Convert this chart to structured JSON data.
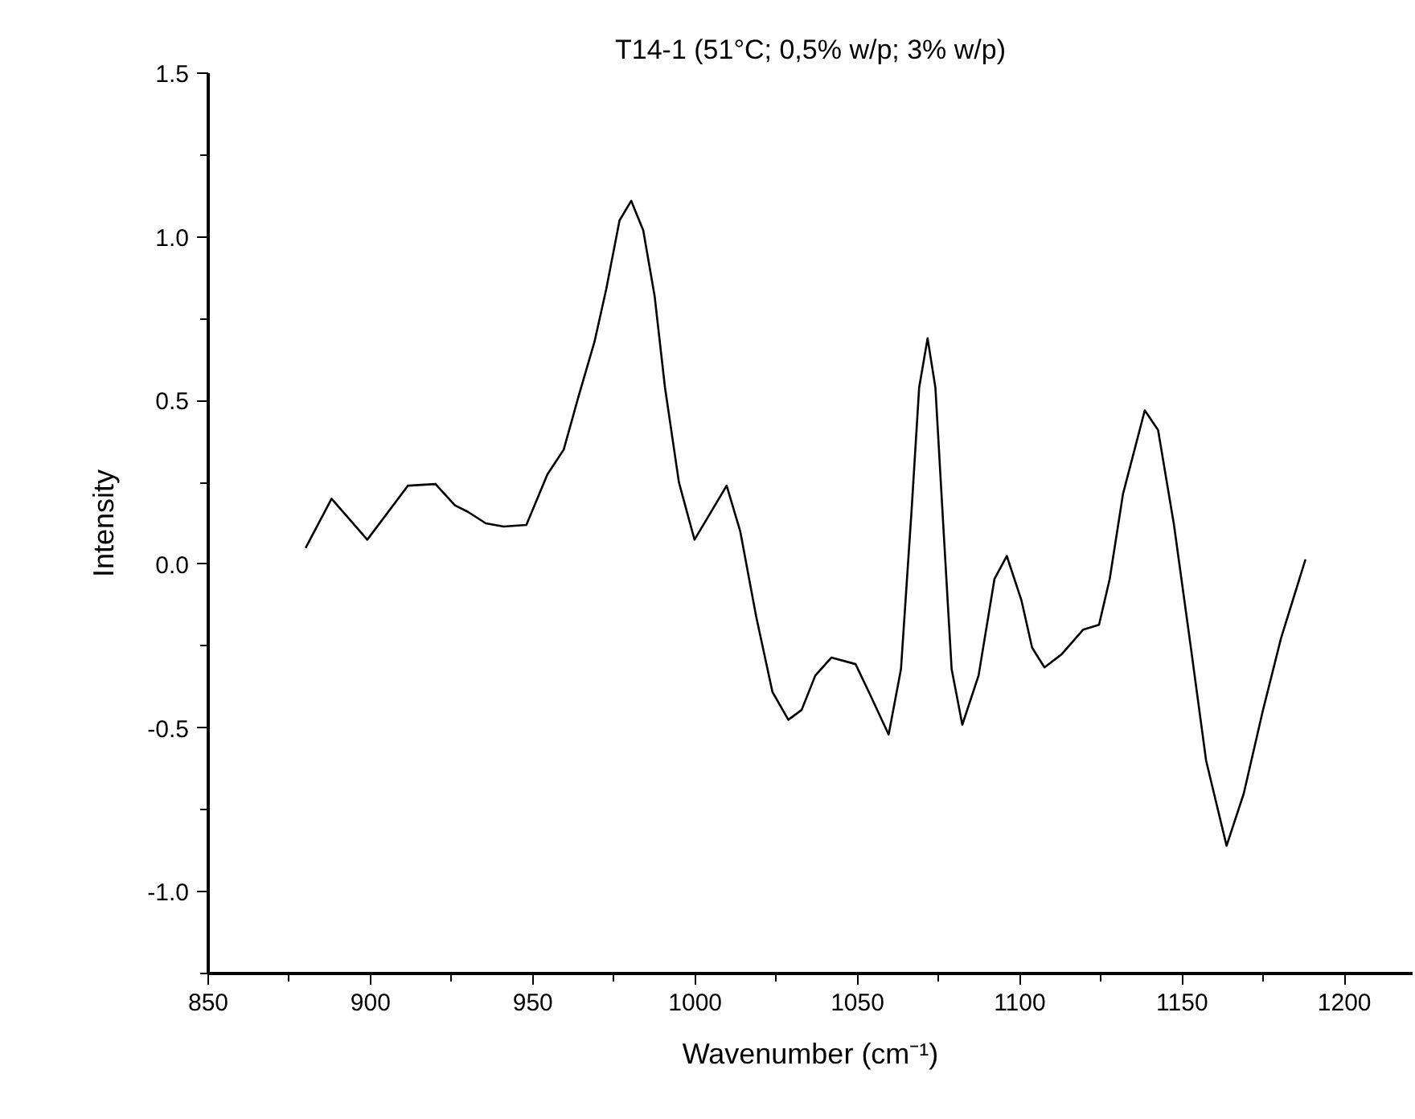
{
  "chart_data": {
    "type": "line",
    "title": "T14-1 (51°C; 0,5% w/p; 3% w/p)",
    "xlabel": "Wavenumber (cm⁻¹)",
    "ylabel": "Intensity",
    "xlim": [
      850,
      1221
    ],
    "xticks": [
      850,
      900,
      950,
      1000,
      1050,
      1100,
      1150,
      1200
    ],
    "ylim": [
      -1.25,
      1.5
    ],
    "yticks": [
      {
        "value": -1.0,
        "label": "-1.0"
      },
      {
        "value": -0.5,
        "label": "-0.5"
      },
      {
        "value": 0.0,
        "label": "0.0"
      },
      {
        "value": 0.5,
        "label": "0.5"
      },
      {
        "value": 1.0,
        "label": "1.0"
      },
      {
        "value": 1.5,
        "label": "1.5"
      }
    ],
    "grid": false,
    "marker": "none",
    "line_style": "solid",
    "series": [
      {
        "color": "#000000",
        "x": [
          880,
          888,
          899,
          911.5,
          920,
          926,
          930,
          935.5,
          941,
          948,
          954.5,
          959.5,
          964,
          969,
          972.6,
          976.7,
          980.3,
          984,
          987.5,
          990.7,
          995,
          999.8,
          1009.7,
          1013.9,
          1018.8,
          1023.8,
          1028.7,
          1032.8,
          1037,
          1042,
          1049.4,
          1053.5,
          1059.6,
          1063.4,
          1066.7,
          1069,
          1071.6,
          1074,
          1076.6,
          1079,
          1082.3,
          1087.3,
          1092.2,
          1096,
          1100.5,
          1103.8,
          1107.6,
          1112.9,
          1119.5,
          1124.4,
          1127.7,
          1131.8,
          1138.5,
          1142.6,
          1147.5,
          1152.5,
          1157.4,
          1163.7,
          1169,
          1174.8,
          1180.5,
          1188
        ],
        "values": [
          0.05,
          0.2,
          0.075,
          0.24,
          0.245,
          0.18,
          0.16,
          0.125,
          0.115,
          0.12,
          0.275,
          0.35,
          0.51,
          0.68,
          0.84,
          1.05,
          1.11,
          1.02,
          0.82,
          0.54,
          0.25,
          0.075,
          0.24,
          0.1,
          -0.16,
          -0.39,
          -0.475,
          -0.445,
          -0.34,
          -0.285,
          -0.305,
          -0.39,
          -0.52,
          -0.32,
          0.17,
          0.54,
          0.69,
          0.54,
          0.09,
          -0.32,
          -0.49,
          -0.34,
          -0.045,
          0.025,
          -0.11,
          -0.255,
          -0.315,
          -0.275,
          -0.2,
          -0.185,
          -0.045,
          0.215,
          0.47,
          0.41,
          0.12,
          -0.24,
          -0.6,
          -0.86,
          -0.7,
          -0.45,
          -0.225,
          0.015
        ]
      }
    ]
  }
}
